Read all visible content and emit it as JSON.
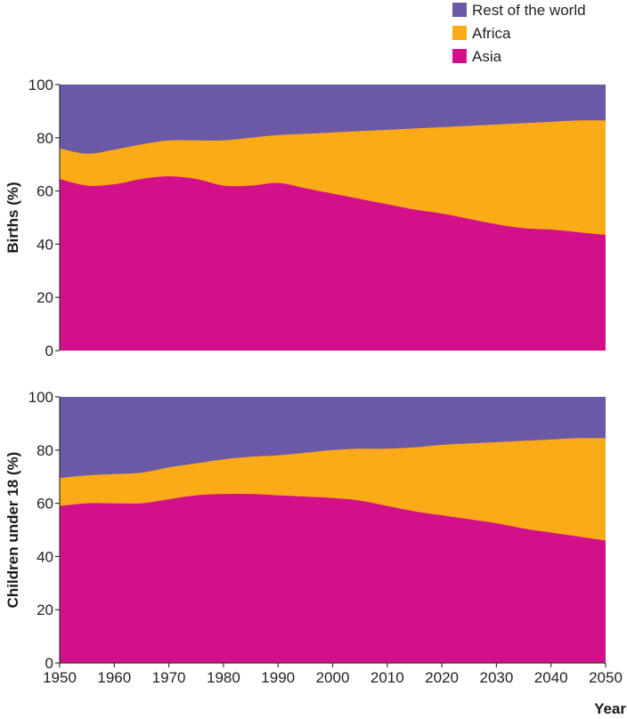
{
  "chart_data": {
    "type": "area",
    "stacked": true,
    "x": [
      1950,
      1955,
      1960,
      1965,
      1970,
      1975,
      1980,
      1985,
      1990,
      1995,
      2000,
      2005,
      2010,
      2015,
      2020,
      2025,
      2030,
      2035,
      2040,
      2045,
      2050
    ],
    "xlabel": "Year",
    "xticks": [
      1950,
      1960,
      1970,
      1980,
      1990,
      2000,
      2010,
      2020,
      2030,
      2040,
      2050
    ],
    "xlim": [
      1950,
      2050
    ],
    "ylim": [
      0,
      100
    ],
    "yticks": [
      0,
      20,
      40,
      60,
      80,
      100
    ],
    "legend": {
      "placement": "top-right",
      "items": [
        {
          "name": "Rest of the world",
          "color": "#6b58a7"
        },
        {
          "name": "Africa",
          "color": "#fbab18"
        },
        {
          "name": "Asia",
          "color": "#d2108a"
        }
      ]
    },
    "panels": [
      {
        "id": "births",
        "ylabel": "Births (%)",
        "series": [
          {
            "name": "Asia",
            "color": "#d2108a",
            "values": [
              64.5,
              62,
              62.5,
              64.5,
              65.5,
              64.5,
              62,
              62,
              63,
              61,
              59,
              57,
              55,
              53,
              51.5,
              49.5,
              47.5,
              46,
              45.5,
              44.5,
              43.5
            ]
          },
          {
            "name": "Africa",
            "color": "#fbab18",
            "values": [
              11.5,
              12,
              13,
              13,
              13.5,
              14.5,
              17,
              18,
              18,
              20.5,
              23,
              25.5,
              28,
              30.5,
              32.5,
              35,
              37.5,
              39.5,
              40.5,
              42,
              43
            ]
          },
          {
            "name": "Rest of the world",
            "color": "#6b58a7",
            "values": [
              24,
              26,
              24.5,
              22.5,
              21,
              21,
              21,
              20,
              19,
              18.5,
              18,
              17.5,
              17,
              16.5,
              16,
              15.5,
              15,
              14.5,
              14,
              13.5,
              13.5
            ]
          }
        ]
      },
      {
        "id": "children",
        "ylabel": "Children under 18 (%)",
        "series": [
          {
            "name": "Asia",
            "color": "#d2108a",
            "values": [
              59,
              60,
              60,
              60,
              61.5,
              63,
              63.5,
              63.5,
              63,
              62.5,
              62,
              61,
              59,
              57,
              55.5,
              54,
              52.5,
              50.5,
              49,
              47.5,
              46
            ]
          },
          {
            "name": "Africa",
            "color": "#fbab18",
            "values": [
              10.5,
              10.5,
              11,
              11.5,
              12,
              12,
              13,
              14,
              15,
              16.5,
              18,
              19.5,
              21.5,
              24,
              26.5,
              28.5,
              30.5,
              33,
              35,
              37,
              38.5
            ]
          },
          {
            "name": "Rest of the world",
            "color": "#6b58a7",
            "values": [
              30.5,
              29.5,
              29,
              28.5,
              26.5,
              25,
              23.5,
              22.5,
              22,
              21,
              20,
              19.5,
              19.5,
              19,
              18,
              17.5,
              17,
              16.5,
              16,
              15.5,
              15.5
            ]
          }
        ]
      }
    ]
  }
}
